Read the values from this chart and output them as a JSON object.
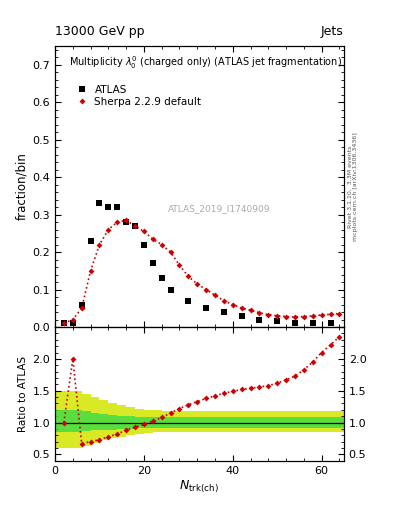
{
  "title_top": "13000 GeV pp",
  "title_right": "Jets",
  "right_label_1": "Rivet 3.1.10,  3.3M events",
  "right_label_2": "mcplots.cern.ch [arXiv:1306.3436]",
  "plot_title": "Multiplicity $\\lambda_{0}^{0}$ (charged only) (ATLAS jet fragmentation)",
  "watermark": "ATLAS_2019_I1740909",
  "xlabel": "$N_{\\rm{trk(ch)}}$",
  "ylabel_main": "fraction/bin",
  "ylabel_ratio": "Ratio to ATLAS",
  "atlas_x": [
    2,
    4,
    6,
    8,
    10,
    12,
    14,
    16,
    18,
    20,
    22,
    24,
    26,
    30,
    34,
    38,
    42,
    46,
    50,
    54,
    58,
    62
  ],
  "atlas_y": [
    0.01,
    0.01,
    0.06,
    0.23,
    0.33,
    0.32,
    0.32,
    0.28,
    0.27,
    0.22,
    0.17,
    0.13,
    0.1,
    0.07,
    0.05,
    0.04,
    0.03,
    0.02,
    0.015,
    0.01,
    0.01,
    0.01
  ],
  "sherpa_x": [
    2,
    4,
    6,
    8,
    10,
    12,
    14,
    16,
    18,
    20,
    22,
    24,
    26,
    28,
    30,
    32,
    34,
    36,
    38,
    40,
    42,
    44,
    46,
    48,
    50,
    52,
    54,
    56,
    58,
    60,
    62,
    64
  ],
  "sherpa_y": [
    0.01,
    0.02,
    0.05,
    0.15,
    0.22,
    0.26,
    0.28,
    0.285,
    0.27,
    0.255,
    0.235,
    0.22,
    0.2,
    0.165,
    0.135,
    0.115,
    0.1,
    0.085,
    0.07,
    0.06,
    0.05,
    0.045,
    0.038,
    0.033,
    0.03,
    0.028,
    0.027,
    0.028,
    0.03,
    0.032,
    0.034,
    0.036
  ],
  "ratio_x": [
    2,
    4,
    6,
    8,
    10,
    12,
    14,
    16,
    18,
    20,
    22,
    24,
    26,
    28,
    30,
    32,
    34,
    36,
    38,
    40,
    42,
    44,
    46,
    48,
    50,
    52,
    54,
    56,
    58,
    60,
    62,
    64
  ],
  "ratio_y": [
    1.0,
    2.0,
    0.67,
    0.7,
    0.73,
    0.78,
    0.82,
    0.88,
    0.93,
    0.97,
    1.02,
    1.08,
    1.15,
    1.22,
    1.28,
    1.33,
    1.38,
    1.42,
    1.46,
    1.49,
    1.52,
    1.54,
    1.56,
    1.58,
    1.62,
    1.67,
    1.73,
    1.83,
    1.95,
    2.1,
    2.22,
    2.35
  ],
  "band_edges": [
    0,
    2,
    4,
    6,
    8,
    10,
    12,
    14,
    16,
    18,
    20,
    22,
    24,
    26,
    28,
    30,
    32,
    40,
    50,
    60,
    65
  ],
  "band_green_lo": [
    0.85,
    0.85,
    0.85,
    0.87,
    0.88,
    0.88,
    0.89,
    0.9,
    0.9,
    0.91,
    0.92,
    0.92,
    0.92,
    0.92,
    0.92,
    0.92,
    0.92,
    0.92,
    0.92,
    0.92,
    0.92
  ],
  "band_green_hi": [
    1.2,
    1.2,
    1.2,
    1.18,
    1.15,
    1.13,
    1.12,
    1.11,
    1.1,
    1.09,
    1.08,
    1.08,
    1.08,
    1.08,
    1.08,
    1.08,
    1.08,
    1.08,
    1.08,
    1.08,
    1.08
  ],
  "band_yellow_lo": [
    0.6,
    0.6,
    0.6,
    0.63,
    0.68,
    0.72,
    0.76,
    0.78,
    0.8,
    0.82,
    0.84,
    0.85,
    0.85,
    0.85,
    0.85,
    0.85,
    0.85,
    0.85,
    0.85,
    0.85,
    0.85
  ],
  "band_yellow_hi": [
    1.5,
    1.5,
    1.5,
    1.45,
    1.4,
    1.35,
    1.3,
    1.27,
    1.24,
    1.22,
    1.2,
    1.19,
    1.18,
    1.18,
    1.18,
    1.18,
    1.18,
    1.18,
    1.18,
    1.18,
    1.18
  ],
  "xlim": [
    0,
    65
  ],
  "ylim_main": [
    0.0,
    0.75
  ],
  "ylim_ratio": [
    0.4,
    2.5
  ],
  "yticks_main": [
    0.0,
    0.1,
    0.2,
    0.3,
    0.4,
    0.5,
    0.6,
    0.7
  ],
  "yticks_ratio": [
    0.5,
    1.0,
    1.5,
    2.0
  ],
  "xticks": [
    0,
    20,
    40,
    60
  ],
  "color_sherpa": "#cc0000",
  "color_atlas": "#000000",
  "bg_color": "#ffffff",
  "color_green": "#00cc44",
  "color_yellow": "#cccc00"
}
